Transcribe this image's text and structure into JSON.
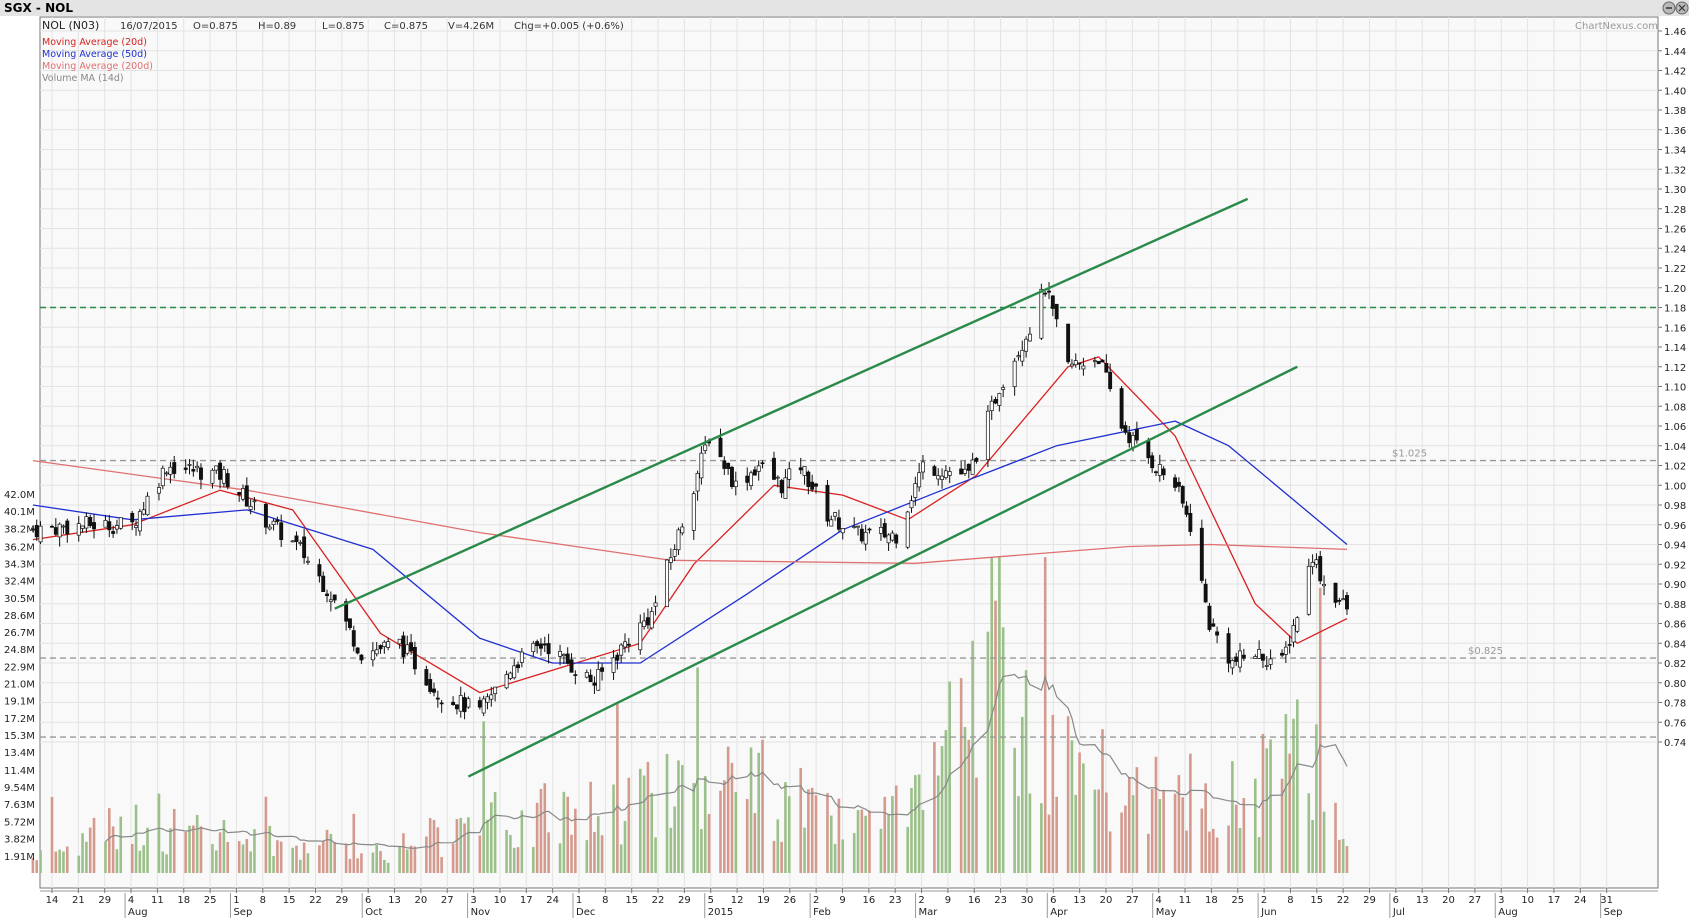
{
  "header": {
    "title": "SGX - NOL",
    "ticker": "NOL (N03)",
    "date": "16/07/2015",
    "open": "O=0.875",
    "high": "H=0.89",
    "low": "L=0.875",
    "close": "C=0.875",
    "volume": "V=4.26M",
    "change": "Chg=+0.005 (+0.6%)",
    "watermark": "ChartNexus.com"
  },
  "legend": [
    {
      "label": "Moving Average (20d)",
      "color": "#d92020"
    },
    {
      "label": "Moving Average (50d)",
      "color": "#2030d0"
    },
    {
      "label": "Moving Average (200d)",
      "color": "#e07070"
    },
    {
      "label": "Volume MA (14d)",
      "color": "#888888"
    }
  ],
  "chart_data": {
    "type": "candlestick",
    "price_axis": {
      "min": 0.72,
      "max": 1.46,
      "ticks": [
        "1.46",
        "1.44",
        "1.42",
        "1.40",
        "1.38",
        "1.36",
        "1.34",
        "1.32",
        "1.30",
        "1.28",
        "1.26",
        "1.24",
        "1.22",
        "1.20",
        "1.18",
        "1.16",
        "1.14",
        "1.12",
        "1.10",
        "1.08",
        "1.06",
        "1.04",
        "1.02",
        "1.00",
        "0.98",
        "0.96",
        "0.94",
        "0.92",
        "0.90",
        "0.88",
        "0.86",
        "0.84",
        "0.82",
        "0.80",
        "0.78",
        "0.76",
        "0.74"
      ]
    },
    "volume_axis": {
      "min": 0,
      "max": 44,
      "unit": "M",
      "ticks": [
        "42.0M",
        "40.1M",
        "38.2M",
        "36.2M",
        "34.3M",
        "32.4M",
        "30.5M",
        "28.6M",
        "26.7M",
        "24.8M",
        "22.9M",
        "21.0M",
        "19.1M",
        "17.2M",
        "15.3M",
        "13.4M",
        "11.4M",
        "9.54M",
        "7.63M",
        "5.72M",
        "3.82M",
        "1.91M"
      ]
    },
    "x_axis": {
      "day_ticks": [
        "14",
        "21",
        "29",
        "4",
        "11",
        "18",
        "25",
        "1",
        "8",
        "15",
        "22",
        "29",
        "6",
        "13",
        "20",
        "27",
        "3",
        "10",
        "17",
        "24",
        "1",
        "8",
        "15",
        "22",
        "29",
        "5",
        "12",
        "19",
        "26",
        "2",
        "9",
        "16",
        "23",
        "2",
        "9",
        "16",
        "23",
        "30",
        "6",
        "13",
        "20",
        "27",
        "4",
        "11",
        "18",
        "25",
        "2",
        "8",
        "15",
        "22",
        "29",
        "6",
        "13",
        "20",
        "27",
        "3",
        "10",
        "17",
        "24",
        "31"
      ],
      "month_labels": [
        "Aug",
        "Sep",
        "Oct",
        "Nov",
        "Dec",
        "2015",
        "Feb",
        "Mar",
        "Apr",
        "May",
        "Jun",
        "Jul",
        "Aug",
        "Sep"
      ]
    },
    "horizontal_lines": [
      {
        "value": 1.18,
        "style": "dashed",
        "color": "#2a8a4a",
        "label": ""
      },
      {
        "value": 1.025,
        "style": "dashed",
        "color": "#999999",
        "label": "$1.025"
      },
      {
        "value": 0.825,
        "style": "dashed",
        "color": "#999999",
        "label": "$0.825"
      },
      {
        "value": 0.745,
        "style": "dashed",
        "color": "#999999",
        "label": ""
      }
    ],
    "trend_lines": [
      {
        "name": "upper-channel",
        "from": {
          "date": "2014-10-24",
          "price": 0.875
        },
        "to": {
          "date": "2015-06-20",
          "price": 1.29
        }
      },
      {
        "name": "lower-channel",
        "from": {
          "date": "2014-11-28",
          "price": 0.705
        },
        "to": {
          "date": "2015-07-03",
          "price": 1.12
        }
      }
    ],
    "price_keypoints": [
      [
        "2014-08-06",
        0.955
      ],
      [
        "2014-08-20",
        0.96
      ],
      [
        "2014-09-01",
        0.96
      ],
      [
        "2014-09-10",
        1.02
      ],
      [
        "2014-09-25",
        1.01
      ],
      [
        "2014-10-06",
        0.965
      ],
      [
        "2014-10-15",
        0.935
      ],
      [
        "2014-10-23",
        0.89
      ],
      [
        "2014-10-31",
        0.83
      ],
      [
        "2014-11-10",
        0.84
      ],
      [
        "2014-11-20",
        0.79
      ],
      [
        "2014-12-01",
        0.77
      ],
      [
        "2014-12-10",
        0.82
      ],
      [
        "2014-12-18",
        0.84
      ],
      [
        "2014-12-24",
        0.82
      ],
      [
        "2014-12-31",
        0.8
      ],
      [
        "2015-01-08",
        0.84
      ],
      [
        "2015-01-15",
        0.87
      ],
      [
        "2015-01-22",
        0.95
      ],
      [
        "2015-01-30",
        1.05
      ],
      [
        "2015-02-06",
        1.0
      ],
      [
        "2015-02-12",
        1.02
      ],
      [
        "2015-02-18",
        1.0
      ],
      [
        "2015-02-23",
        1.02
      ],
      [
        "2015-03-02",
        0.97
      ],
      [
        "2015-03-10",
        0.95
      ],
      [
        "2015-03-20",
        0.95
      ],
      [
        "2015-03-27",
        1.02
      ],
      [
        "2015-04-08",
        1.01
      ],
      [
        "2015-04-16",
        1.1
      ],
      [
        "2015-04-24",
        1.16
      ],
      [
        "2015-04-28",
        1.2
      ],
      [
        "2015-05-04",
        1.12
      ],
      [
        "2015-05-12",
        1.13
      ],
      [
        "2015-05-18",
        1.06
      ],
      [
        "2015-05-22",
        1.04
      ],
      [
        "2015-06-01",
        1.0
      ],
      [
        "2015-06-05",
        0.96
      ],
      [
        "2015-06-10",
        0.86
      ],
      [
        "2015-06-16",
        0.82
      ],
      [
        "2015-06-22",
        0.83
      ],
      [
        "2015-06-29",
        0.82
      ],
      [
        "2015-07-03",
        0.87
      ],
      [
        "2015-07-07",
        0.93
      ],
      [
        "2015-07-10",
        0.9
      ],
      [
        "2015-07-16",
        0.875
      ]
    ],
    "moving_averages": [
      {
        "name": "Moving Average (20d)",
        "points": [
          [
            "2014-08-06",
            0.945
          ],
          [
            "2014-09-01",
            0.96
          ],
          [
            "2014-09-24",
            0.995
          ],
          [
            "2014-10-13",
            0.975
          ],
          [
            "2014-11-05",
            0.85
          ],
          [
            "2014-12-01",
            0.79
          ],
          [
            "2014-12-22",
            0.815
          ],
          [
            "2015-01-12",
            0.84
          ],
          [
            "2015-01-26",
            0.92
          ],
          [
            "2015-02-16",
            1.0
          ],
          [
            "2015-03-06",
            0.99
          ],
          [
            "2015-03-23",
            0.965
          ],
          [
            "2015-04-10",
            1.01
          ],
          [
            "2015-05-04",
            1.12
          ],
          [
            "2015-05-12",
            1.13
          ],
          [
            "2015-06-01",
            1.05
          ],
          [
            "2015-06-22",
            0.88
          ],
          [
            "2015-07-03",
            0.84
          ],
          [
            "2015-07-16",
            0.865
          ]
        ]
      },
      {
        "name": "Moving Average (50d)",
        "points": [
          [
            "2014-08-06",
            0.98
          ],
          [
            "2014-09-01",
            0.965
          ],
          [
            "2014-10-01",
            0.975
          ],
          [
            "2014-11-03",
            0.935
          ],
          [
            "2014-12-01",
            0.845
          ],
          [
            "2014-12-20",
            0.82
          ],
          [
            "2015-01-12",
            0.82
          ],
          [
            "2015-02-09",
            0.89
          ],
          [
            "2015-03-06",
            0.955
          ],
          [
            "2015-04-01",
            0.995
          ],
          [
            "2015-05-01",
            1.04
          ],
          [
            "2015-06-01",
            1.065
          ],
          [
            "2015-06-15",
            1.04
          ],
          [
            "2015-07-16",
            0.94
          ]
        ]
      },
      {
        "name": "Moving Average (200d)",
        "points": [
          [
            "2014-08-06",
            1.025
          ],
          [
            "2014-10-01",
            0.995
          ],
          [
            "2014-12-01",
            0.952
          ],
          [
            "2015-01-20",
            0.924
          ],
          [
            "2015-03-25",
            0.921
          ],
          [
            "2015-05-20",
            0.938
          ],
          [
            "2015-06-10",
            0.94
          ],
          [
            "2015-07-16",
            0.935
          ]
        ]
      }
    ],
    "volume_keypoints_M": [
      [
        "2014-08-06",
        2
      ],
      [
        "2014-09-01",
        6
      ],
      [
        "2014-10-01",
        4
      ],
      [
        "2014-11-05",
        3
      ],
      [
        "2014-12-01",
        6
      ],
      [
        "2015-01-05",
        8
      ],
      [
        "2015-01-25",
        12
      ],
      [
        "2015-02-16",
        10
      ],
      [
        "2015-03-09",
        5
      ],
      [
        "2015-03-27",
        8
      ],
      [
        "2015-04-16",
        28
      ],
      [
        "2015-05-05",
        12
      ],
      [
        "2015-06-01",
        9
      ],
      [
        "2015-06-22",
        10
      ],
      [
        "2015-07-06",
        16
      ],
      [
        "2015-07-16",
        4
      ]
    ]
  }
}
